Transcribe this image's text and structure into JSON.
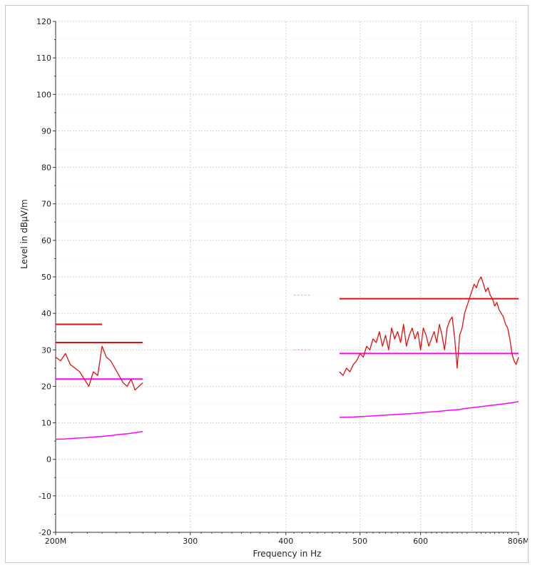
{
  "chart_data": {
    "type": "line",
    "title": "",
    "xlabel": "Frequency in Hz",
    "ylabel": "Level in dBµV/m",
    "x_scale": "log",
    "xlim": [
      200,
      806
    ],
    "ylim": [
      -20,
      120
    ],
    "grid": true,
    "x_tick_labels": [
      {
        "value": 200,
        "label": "200M"
      },
      {
        "value": 300,
        "label": "300"
      },
      {
        "value": 400,
        "label": "400"
      },
      {
        "value": 500,
        "label": "500"
      },
      {
        "value": 600,
        "label": "600"
      },
      {
        "value": 806,
        "label": "806M"
      }
    ],
    "y_ticks": [
      -20,
      -10,
      0,
      10,
      20,
      30,
      40,
      50,
      60,
      70,
      80,
      90,
      100,
      110,
      120
    ],
    "colors": {
      "peak": "#e01010",
      "average": "#ff00ff",
      "limit_peak": "#e01010",
      "limit_average": "#ff00ff"
    },
    "series": [
      {
        "role": "peak-trace",
        "segments": [
          {
            "x": [
              200,
              203,
              206,
              209,
              212,
              215,
              218,
              221,
              224,
              227,
              230,
              233,
              236,
              239,
              242,
              245,
              248,
              251,
              254,
              257,
              260
            ],
            "y": [
              28,
              27,
              29,
              26,
              25,
              24,
              22,
              20,
              24,
              23,
              31,
              28,
              27,
              25,
              23,
              21,
              20,
              22,
              19,
              20,
              21
            ]
          },
          {
            "x": [
              470,
              475,
              480,
              485,
              490,
              495,
              500,
              505,
              510,
              515,
              520,
              525,
              530,
              535,
              540,
              545,
              550,
              555,
              560,
              565,
              570,
              575,
              580,
              585,
              590,
              595,
              600,
              605,
              610,
              615,
              620,
              625,
              630,
              635,
              640,
              645,
              650,
              655,
              660,
              665,
              670,
              675,
              680,
              685,
              690,
              695,
              700,
              705,
              710,
              715,
              720,
              725,
              730,
              735,
              740,
              745,
              750,
              755,
              760,
              765,
              770,
              775,
              780,
              785,
              790,
              795,
              800,
              806
            ],
            "y": [
              24,
              23,
              25,
              24,
              26,
              27,
              29,
              28,
              31,
              30,
              33,
              32,
              35,
              31,
              34,
              30,
              36,
              33,
              35,
              32,
              37,
              31,
              34,
              36,
              33,
              35,
              30,
              36,
              34,
              31,
              33,
              35,
              32,
              37,
              34,
              30,
              36,
              38,
              39,
              33,
              25,
              34,
              36,
              40,
              42,
              44,
              46,
              48,
              47,
              49,
              50,
              48,
              46,
              47,
              45,
              44,
              42,
              43,
              41,
              40,
              39,
              37,
              36,
              33,
              29,
              27,
              26,
              28
            ]
          }
        ]
      },
      {
        "role": "average-trace",
        "segments": [
          {
            "x": [
              200,
              206,
              212,
              218,
              224,
              230,
              236,
              242,
              248,
              254,
              260
            ],
            "y": [
              5.5,
              5.6,
              5.8,
              5.9,
              6.1,
              6.3,
              6.5,
              6.8,
              7.0,
              7.3,
              7.6
            ]
          },
          {
            "x": [
              470,
              490,
              510,
              530,
              550,
              570,
              590,
              610,
              630,
              650,
              670,
              690,
              710,
              730,
              750,
              770,
              790,
              806
            ],
            "y": [
              11.5,
              11.6,
              11.8,
              12,
              12.2,
              12.4,
              12.6,
              12.9,
              13.1,
              13.4,
              13.6,
              14,
              14.3,
              14.6,
              14.9,
              15.2,
              15.5,
              15.8
            ]
          }
        ]
      },
      {
        "role": "limit-lines",
        "lines": [
          {
            "x1": 200,
            "x2": 230,
            "y": 37,
            "kind": "peak"
          },
          {
            "x1": 200,
            "x2": 260,
            "y": 32,
            "kind": "peak"
          },
          {
            "x1": 200,
            "x2": 260,
            "y": 22,
            "kind": "average"
          },
          {
            "x1": 470,
            "x2": 806,
            "y": 44,
            "kind": "peak"
          },
          {
            "x1": 470,
            "x2": 806,
            "y": 29,
            "kind": "average"
          },
          {
            "x1": 410,
            "x2": 430,
            "y": 45,
            "kind": "peak-faint"
          },
          {
            "x1": 410,
            "x2": 430,
            "y": 30,
            "kind": "peak-faint"
          }
        ]
      }
    ]
  }
}
